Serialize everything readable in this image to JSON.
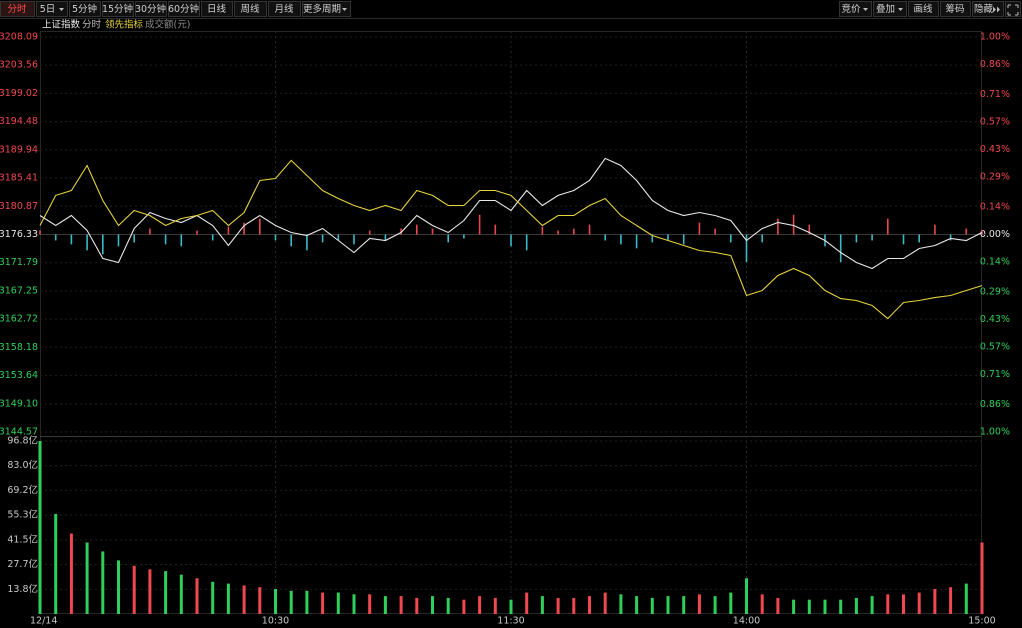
{
  "toolbar": {
    "left": [
      {
        "label": "分时",
        "active": true
      },
      {
        "label": "5日",
        "dropdown": true
      },
      {
        "label": "5分钟"
      },
      {
        "label": "15分钟"
      },
      {
        "label": "30分钟"
      },
      {
        "label": "60分钟"
      },
      {
        "label": "日线"
      },
      {
        "label": "周线"
      },
      {
        "label": "月线"
      },
      {
        "label": "更多周期",
        "dropdown": true
      }
    ],
    "right": [
      {
        "label": "竞价",
        "dropdown": true
      },
      {
        "label": "叠加",
        "dropdown": true
      },
      {
        "label": "画线"
      },
      {
        "label": "筹码"
      },
      {
        "label": "隐藏",
        "expand": true
      }
    ]
  },
  "chart_data": {
    "type": "line",
    "title": "上证指数",
    "x": [
      0,
      4,
      8,
      12,
      16,
      20,
      24,
      28,
      32,
      36,
      40,
      44,
      48,
      52,
      56,
      60,
      64,
      68,
      72,
      76,
      80,
      84,
      88,
      92,
      96,
      100,
      104,
      108,
      112,
      116,
      120,
      124,
      128,
      132,
      136,
      140,
      144,
      148,
      152,
      156,
      160,
      164,
      168,
      172,
      176,
      180,
      184,
      188,
      192,
      196,
      200,
      204,
      208,
      212,
      216,
      220,
      224,
      228,
      232,
      236,
      240
    ],
    "xlim": [
      0,
      240
    ],
    "xticks": [
      {
        "value": 0,
        "label": "12/14"
      },
      {
        "value": 60,
        "label": "10:30"
      },
      {
        "value": 120,
        "label": "11:30"
      },
      {
        "value": 180,
        "label": "14:00"
      },
      {
        "value": 240,
        "label": "15:00"
      }
    ],
    "ylim": [
      3144.57,
      3208.09
    ],
    "yticks": [
      3208.09,
      3203.56,
      3199.02,
      3194.48,
      3189.94,
      3185.41,
      3180.87,
      3176.33,
      3171.79,
      3167.25,
      3162.72,
      3158.18,
      3153.64,
      {
        "value": 3149.1,
        "label": "3149.10"
      },
      3144.57
    ],
    "y2lim": [
      -1,
      1
    ],
    "y2ticks": [
      {
        "value": 1,
        "label": "1.00%"
      },
      {
        "value": 0.86,
        "label": "0.86%"
      },
      {
        "value": 0.71,
        "label": "0.71%"
      },
      {
        "value": 0.57,
        "label": "0.57%"
      },
      {
        "value": 0.43,
        "label": "0.43%"
      },
      {
        "value": 0.29,
        "label": "0.29%"
      },
      {
        "value": 0.14,
        "label": "0.14%"
      },
      {
        "value": 0,
        "label": "0.00%"
      },
      {
        "value": -0.14,
        "label": "0.14%"
      },
      {
        "value": -0.29,
        "label": "0.29%"
      },
      {
        "value": -0.43,
        "label": "0.43%"
      },
      {
        "value": -0.57,
        "label": "0.57%"
      },
      {
        "value": -0.71,
        "label": "0.71%"
      },
      {
        "value": -0.86,
        "label": "0.86%"
      },
      {
        "value": -1,
        "label": "1.00%"
      }
    ],
    "grid": true,
    "up_color": "#f0484f",
    "down_color": "#2ecf5a",
    "series": [
      {
        "name": "分时",
        "color": "#e8e8e8",
        "values": [
          3179.39,
          3177.78,
          3179.39,
          3176.97,
          3172.47,
          3171.82,
          3177.3,
          3179.87,
          3178.9,
          3178.26,
          3179.39,
          3177.78,
          3174.56,
          3177.78,
          3179.39,
          3177.78,
          3176.65,
          3176.17,
          3177.3,
          3175.36,
          3173.43,
          3175.69,
          3175.36,
          3176.65,
          3179.39,
          3177.78,
          3176.65,
          3178.58,
          3181.8,
          3181.8,
          3180.19,
          3183.41,
          3180.99,
          3182.61,
          3183.41,
          3185.02,
          3188.56,
          3187.43,
          3185.02,
          3181.8,
          3180.19,
          3179.39,
          3179.87,
          3179.39,
          3178.58,
          3175.36,
          3177.3,
          3178.26,
          3177.78,
          3176.65,
          3175.36,
          3173.43,
          3171.82,
          3170.86,
          3172.47,
          3172.47,
          3174.08,
          3174.56,
          3175.69,
          3175.36,
          3176.65
        ]
      },
      {
        "name": "领先指标",
        "color": "#e6d23c",
        "values": [
          3177.78,
          3182.61,
          3183.41,
          3187.43,
          3181.8,
          3177.78,
          3180.19,
          3179.39,
          3177.78,
          3178.9,
          3179.39,
          3180.19,
          3177.78,
          3179.87,
          3185.02,
          3185.34,
          3188.24,
          3185.82,
          3183.41,
          3182.12,
          3180.99,
          3180.19,
          3180.99,
          3180.19,
          3183.41,
          3182.61,
          3180.99,
          3180.99,
          3183.41,
          3183.41,
          3182.61,
          3180.19,
          3177.78,
          3179.39,
          3179.39,
          3180.99,
          3182.12,
          3179.39,
          3177.78,
          3176.17,
          3175.36,
          3174.56,
          3173.76,
          3173.43,
          3172.95,
          3166.52,
          3167.32,
          3169.73,
          3170.86,
          3169.73,
          3167.32,
          3166.03,
          3165.71,
          3164.91,
          3162.81,
          3165.39,
          3165.71,
          3166.19,
          3166.52,
          3167.32,
          3168.12
        ]
      }
    ],
    "strength": {
      "axis": "y2",
      "up_color": "#e8494f",
      "down_color": "#3cb9c9",
      "values": [
        0.02,
        -0.03,
        -0.05,
        -0.08,
        -0.1,
        -0.06,
        -0.04,
        0.03,
        -0.05,
        -0.06,
        0.02,
        -0.03,
        0.04,
        0.06,
        0.08,
        -0.03,
        -0.06,
        -0.08,
        -0.04,
        -0.03,
        -0.05,
        0.02,
        -0.03,
        0.03,
        0.05,
        0.03,
        -0.04,
        -0.02,
        0.1,
        0.05,
        -0.06,
        -0.08,
        0.04,
        0.02,
        0.03,
        0.05,
        -0.03,
        -0.05,
        -0.07,
        -0.04,
        -0.03,
        -0.05,
        0.06,
        0.03,
        -0.04,
        -0.14,
        -0.04,
        0.08,
        0.1,
        0.05,
        -0.06,
        -0.14,
        -0.04,
        -0.03,
        0.08,
        -0.05,
        -0.04,
        0.05,
        -0.03,
        0.03,
        0.02
      ]
    },
    "volume": {
      "name": "成交额(元)",
      "ylim": [
        0,
        96.8
      ],
      "yticks": [
        {
          "value": 96.8,
          "label": "96.8亿"
        },
        {
          "value": 83.0,
          "label": "83.0亿"
        },
        {
          "value": 69.2,
          "label": "69.2亿"
        },
        {
          "value": 55.3,
          "label": "55.3亿"
        },
        {
          "value": 41.5,
          "label": "41.5亿"
        },
        {
          "value": 27.7,
          "label": "27.7亿"
        },
        {
          "value": 13.8,
          "label": "13.8亿"
        }
      ],
      "values": [
        96.8,
        56,
        45,
        40,
        35,
        30,
        27,
        25,
        24,
        22,
        20,
        18,
        17,
        16,
        15,
        14,
        13,
        13,
        12,
        12,
        11,
        11,
        10,
        10,
        9,
        10,
        9,
        8,
        10,
        9,
        8,
        12,
        10,
        9,
        9,
        10,
        12,
        11,
        10,
        9,
        10,
        10,
        11,
        10,
        12,
        20,
        11,
        9,
        8,
        8,
        8,
        8,
        9,
        10,
        11,
        11,
        12,
        14,
        15,
        17,
        40
      ]
    }
  }
}
